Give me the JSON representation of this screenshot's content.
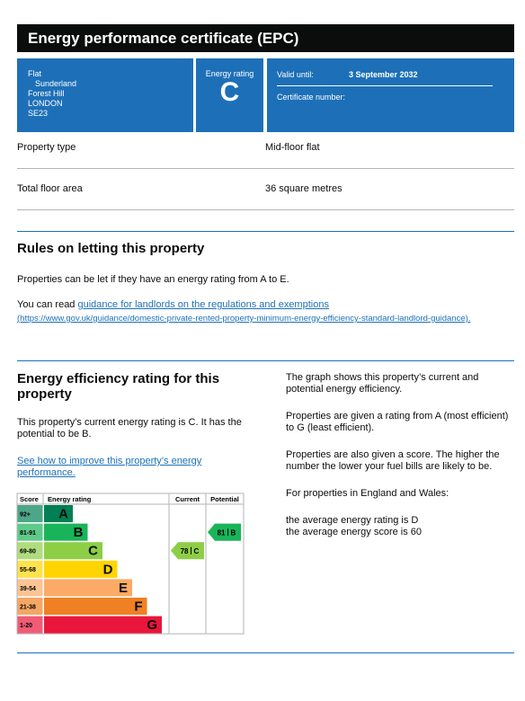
{
  "header": {
    "title": "Energy performance certificate (EPC)"
  },
  "address": [
    "Flat",
    "Sunderland",
    "Forest Hill",
    "LONDON",
    "SE23"
  ],
  "rating_box": {
    "label": "Energy rating",
    "value": "C"
  },
  "validity": {
    "label": "Valid until:",
    "value": "3 September 2032",
    "certificate_label": "Certificate number:"
  },
  "property": [
    {
      "label": "Property type",
      "value": "Mid-floor flat"
    },
    {
      "label": "Total floor area",
      "value": "36 square metres"
    }
  ],
  "letting": {
    "heading": "Rules on letting this property",
    "text": "Properties can be let if they have an energy rating from A to E.",
    "read_prefix": "You can read ",
    "link": "guidance for landlords on the regulations and exemptions",
    "url_text": "(https://www.gov.uk/guidance/domestic-private-rented-property-minimum-energy-efficiency-standard-landlord-guidance)."
  },
  "efficiency": {
    "heading": "Energy efficiency rating for this property",
    "text": "This property’s current energy rating is C. It has the potential to be B.",
    "link": "See how to improve this property’s energy performance.",
    "notes": [
      "The graph shows this property’s current and potential energy efficiency.",
      "Properties are given a rating from A (most efficient) to G (least efficient).",
      "Properties are also given a score. The higher the number the lower your fuel bills are likely to be.",
      "For properties in England and Wales:"
    ],
    "averages": [
      "the average energy rating is D",
      "the average energy score is 60"
    ]
  },
  "rating_chart": {
    "headers": {
      "score": "Score",
      "rating": "Energy rating",
      "current": "Current",
      "potential": "Potential"
    },
    "bands": [
      {
        "range": "92+",
        "letter": "A",
        "color": "#008054"
      },
      {
        "range": "81-91",
        "letter": "B",
        "color": "#19b459"
      },
      {
        "range": "69-80",
        "letter": "C",
        "color": "#8dce46"
      },
      {
        "range": "55-68",
        "letter": "D",
        "color": "#ffd500"
      },
      {
        "range": "39-54",
        "letter": "E",
        "color": "#fcaa65"
      },
      {
        "range": "21-38",
        "letter": "F",
        "color": "#ef8023"
      },
      {
        "range": "1-20",
        "letter": "G",
        "color": "#e9153b"
      }
    ],
    "current": {
      "score": 78,
      "rating": "C"
    },
    "potential": {
      "score": 81,
      "rating": "B"
    }
  }
}
